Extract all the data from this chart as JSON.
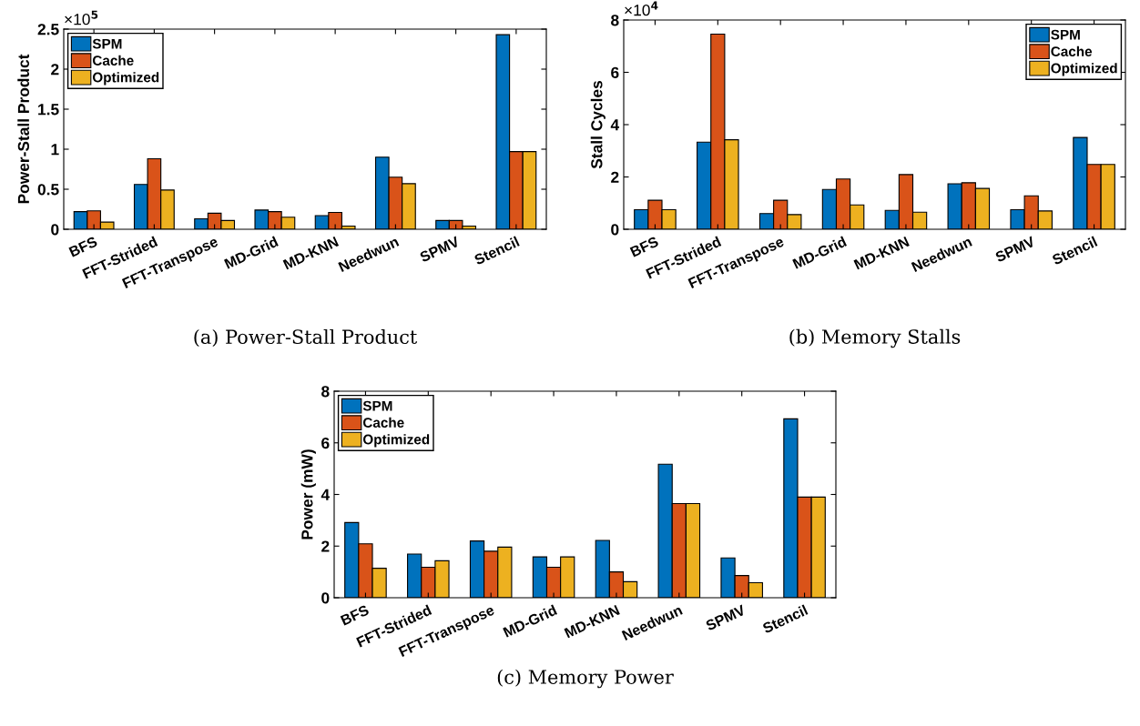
{
  "chart_data": [
    {
      "type": "bar",
      "ylabel": "Power-Stall Product",
      "categories": [
        "BFS",
        "FFT-Strided",
        "FFT-Transpose",
        "MD-Grid",
        "MD-KNN",
        "Needwun",
        "SPMV",
        "Stencil"
      ],
      "series": [
        {
          "name": "SPM",
          "color": "#0072bd",
          "values": [
            0.22,
            0.56,
            0.13,
            0.24,
            0.17,
            0.9,
            0.11,
            2.43
          ]
        },
        {
          "name": "Cache",
          "color": "#d95319",
          "values": [
            0.23,
            0.88,
            0.2,
            0.22,
            0.21,
            0.65,
            0.11,
            0.97
          ]
        },
        {
          "name": "Optimized",
          "color": "#edb120",
          "values": [
            0.09,
            0.49,
            0.11,
            0.15,
            0.04,
            0.57,
            0.04,
            0.97
          ]
        }
      ],
      "ylim": [
        0,
        2.5
      ],
      "yticks": [
        0,
        0.5,
        1,
        1.5,
        2,
        2.5
      ],
      "legend": "top left",
      "grid": false,
      "annotations": [
        "×10$^{5}$",
        "(a) Power-Stall Product"
      ]
    },
    {
      "type": "bar",
      "ylabel": "Stall Cycles",
      "categories": [
        "BFS",
        "FFT-Strided",
        "FFT-Transpose",
        "MD-Grid",
        "MD-KNN",
        "Needwun",
        "SPMV",
        "Stencil"
      ],
      "series": [
        {
          "name": "SPM",
          "color": "#0072bd",
          "values": [
            0.75,
            3.33,
            0.6,
            1.52,
            0.72,
            1.74,
            0.75,
            3.51
          ]
        },
        {
          "name": "Cache",
          "color": "#d95319",
          "values": [
            1.11,
            7.46,
            1.11,
            1.92,
            2.09,
            1.78,
            1.28,
            2.48
          ]
        },
        {
          "name": "Optimized",
          "color": "#edb120",
          "values": [
            0.75,
            3.42,
            0.56,
            0.93,
            0.65,
            1.56,
            0.7,
            2.48
          ]
        }
      ],
      "ylim": [
        0,
        8
      ],
      "yticks": [
        0,
        2,
        4,
        6,
        8
      ],
      "legend": "top right",
      "grid": false,
      "annotations": [
        "×10$^{4}$",
        "(b) Memory Stalls"
      ]
    },
    {
      "type": "bar",
      "ylabel": "Power (mW)",
      "categories": [
        "BFS",
        "FFT-Strided",
        "FFT-Transpose",
        "MD-Grid",
        "MD-KNN",
        "Needwun",
        "SPMV",
        "Stencil"
      ],
      "series": [
        {
          "name": "SPM",
          "color": "#0072bd",
          "values": [
            2.91,
            1.69,
            2.2,
            1.58,
            2.22,
            5.17,
            1.54,
            6.93
          ]
        },
        {
          "name": "Cache",
          "color": "#d95319",
          "values": [
            2.09,
            1.18,
            1.8,
            1.18,
            1.0,
            3.65,
            0.86,
            3.9
          ]
        },
        {
          "name": "Optimized",
          "color": "#edb120",
          "values": [
            1.14,
            1.43,
            1.96,
            1.58,
            0.62,
            3.65,
            0.58,
            3.9
          ]
        }
      ],
      "ylim": [
        0,
        8
      ],
      "yticks": [
        0,
        2,
        4,
        6,
        8
      ],
      "legend": "top left",
      "grid": false,
      "annotations": [
        "(c) Memory Power"
      ]
    }
  ]
}
